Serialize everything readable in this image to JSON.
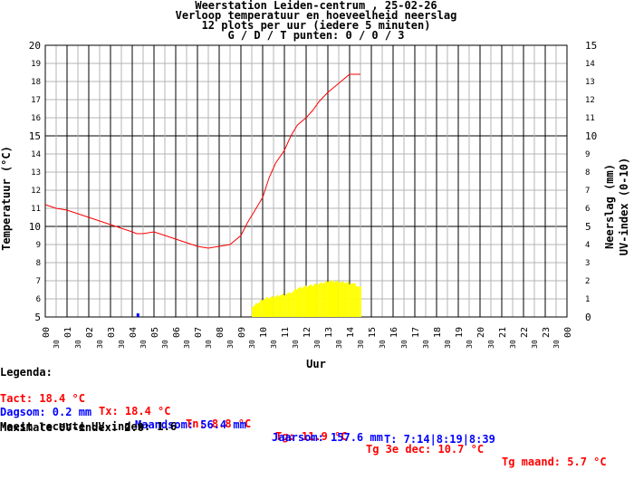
{
  "chart_data": {
    "type": "line",
    "title_lines": [
      "Weerstation Leiden-centrum , 25-02-26",
      "Verloop temperatuur en hoeveelheid neerslag",
      "12 plots per uur (iedere 5 minuten)",
      "G / D / T punten: 0 / 0 / 3"
    ],
    "xlabel": "Uur",
    "ylabel_left": "Temperatuur (°C)",
    "ylabel_right_1": "Neerslag (mm)",
    "ylabel_right_2": "UV-index (0-10)",
    "ylim_left": [
      5,
      20
    ],
    "ylim_right": [
      0,
      15
    ],
    "xlim": [
      0,
      24
    ],
    "grid": true,
    "hour_ticks": [
      "00",
      "01",
      "02",
      "03",
      "04",
      "05",
      "06",
      "07",
      "08",
      "09",
      "10",
      "11",
      "12",
      "13",
      "14",
      "15",
      "16",
      "17",
      "18",
      "19",
      "20",
      "21",
      "22",
      "23",
      "00"
    ],
    "half_tick_label": "30",
    "left_ticks": [
      "5",
      "6",
      "7",
      "8",
      "9",
      "10",
      "11",
      "12",
      "13",
      "14",
      "15",
      "16",
      "17",
      "18",
      "19",
      "20"
    ],
    "right_ticks": [
      "0",
      "1",
      "2",
      "3",
      "4",
      "5",
      "6",
      "7",
      "8",
      "9",
      "10",
      "11",
      "12",
      "13",
      "14",
      "15"
    ],
    "series": [
      {
        "name": "Temperatuur",
        "color": "#ff0000",
        "x": [
          0,
          0.5,
          1,
          1.5,
          2,
          2.5,
          3,
          3.5,
          4,
          4.2,
          4.5,
          5,
          5.5,
          6,
          6.5,
          7,
          7.5,
          8,
          8.5,
          9,
          9.3,
          9.6,
          10,
          10.3,
          10.6,
          11,
          11.3,
          11.6,
          12,
          12.3,
          12.6,
          13,
          13.3,
          13.6,
          14,
          14.3,
          14.5
        ],
        "y": [
          11.2,
          11.0,
          10.9,
          10.7,
          10.5,
          10.3,
          10.1,
          9.9,
          9.7,
          9.6,
          9.6,
          9.7,
          9.5,
          9.3,
          9.1,
          8.9,
          8.8,
          8.9,
          9.0,
          9.5,
          10.2,
          10.8,
          11.6,
          12.7,
          13.5,
          14.2,
          15.0,
          15.6,
          16.0,
          16.4,
          16.9,
          17.4,
          17.7,
          18.0,
          18.4,
          18.4,
          18.4
        ]
      },
      {
        "name": "UV-index",
        "color": "#ffff00",
        "x": [
          9.5,
          9.8,
          10,
          10.4,
          10.8,
          11.2,
          11.6,
          12,
          12.4,
          12.8,
          13,
          13.4,
          13.8,
          14.2,
          14.5
        ],
        "y": [
          0.6,
          0.8,
          1.0,
          1.1,
          1.2,
          1.3,
          1.6,
          1.7,
          1.8,
          1.9,
          2.0,
          1.95,
          1.9,
          1.8,
          1.6
        ]
      },
      {
        "name": "Neerslag",
        "color": "#0000ff",
        "x": [
          4.2
        ],
        "y": [
          0.2
        ]
      }
    ]
  },
  "legend": {
    "title": "Legenda:",
    "row1": [
      {
        "text": "Tact: 18.4 °C",
        "color": "#ff0000"
      },
      {
        "text": "Tx: 18.4 °C",
        "color": "#ff0000"
      },
      {
        "text": "Tn: 8.8 °C",
        "color": "#ff0000"
      },
      {
        "text": "Tg: 11.9 °C",
        "color": "#ff0000"
      },
      {
        "text": "Tg 3e dec: 10.7 °C",
        "color": "#ff0000"
      },
      {
        "text": "Tg maand: 5.7 °C",
        "color": "#ff0000"
      }
    ],
    "row2": [
      {
        "text": "Dagsom: 0.2 mm",
        "color": "#0000ff"
      },
      {
        "text": "Maandsom: 56.4 mm",
        "color": "#0000ff"
      },
      {
        "text": "Jaarsom: 157.6 mm",
        "color": "#0000ff"
      }
    ],
    "uv_recent": "Meest recente UV-index: 1.6",
    "times": "T: 7:14|8:19|8:39",
    "uv_max": "Maximale UV-index: 2.0"
  }
}
